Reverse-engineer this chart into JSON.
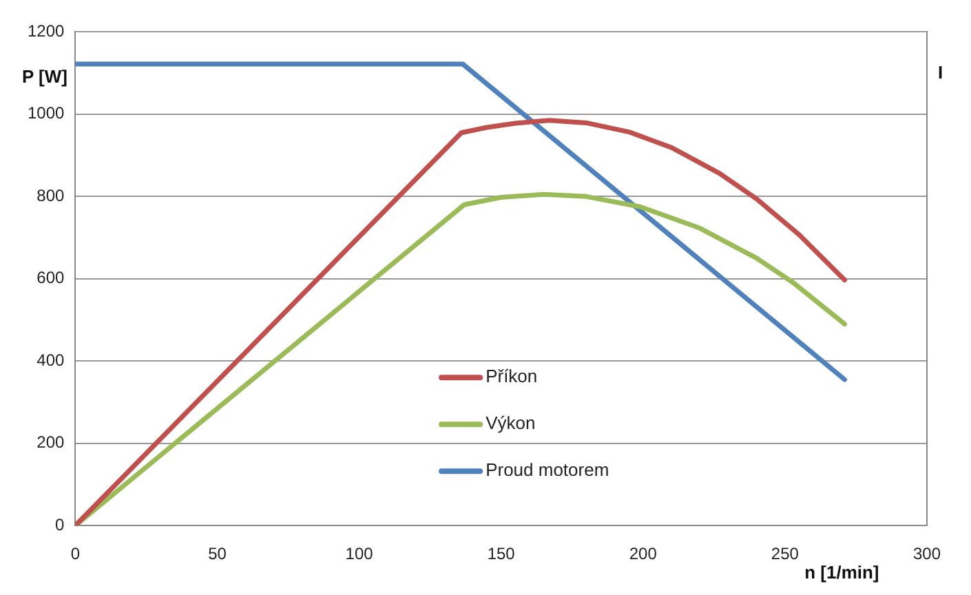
{
  "chart_data": {
    "type": "line",
    "xlabel": "n [1/min]",
    "ylabel": "P [W]",
    "y2label": "I",
    "xlim": [
      0,
      300
    ],
    "xticks": [
      0,
      50,
      100,
      150,
      200,
      250,
      300
    ],
    "ylim": [
      0,
      1200
    ],
    "yticks": [
      0,
      200,
      400,
      600,
      800,
      1000,
      1200
    ],
    "grid": "y",
    "legend": "bottom",
    "marker": "none",
    "line_style": "solid",
    "series": [
      {
        "name": "Příkon",
        "color": "#c0504d",
        "x": [
          0,
          136,
          145,
          155,
          167,
          180,
          195,
          210,
          227,
          240,
          255,
          271
        ],
        "values": [
          0,
          955,
          968,
          978,
          985,
          979,
          957,
          919,
          856,
          794,
          707,
          597
        ]
      },
      {
        "name": "Výkon",
        "color": "#9bbb59",
        "x": [
          0,
          137,
          150,
          165,
          180,
          199,
          220,
          240,
          253,
          271
        ],
        "values": [
          0,
          780,
          798,
          805,
          800,
          775,
          723,
          650,
          590,
          490
        ]
      },
      {
        "name": "Proud motorem",
        "color": "#4f81bd",
        "x": [
          0,
          136.5,
          271
        ],
        "values": [
          1122,
          1122,
          355
        ]
      }
    ]
  }
}
